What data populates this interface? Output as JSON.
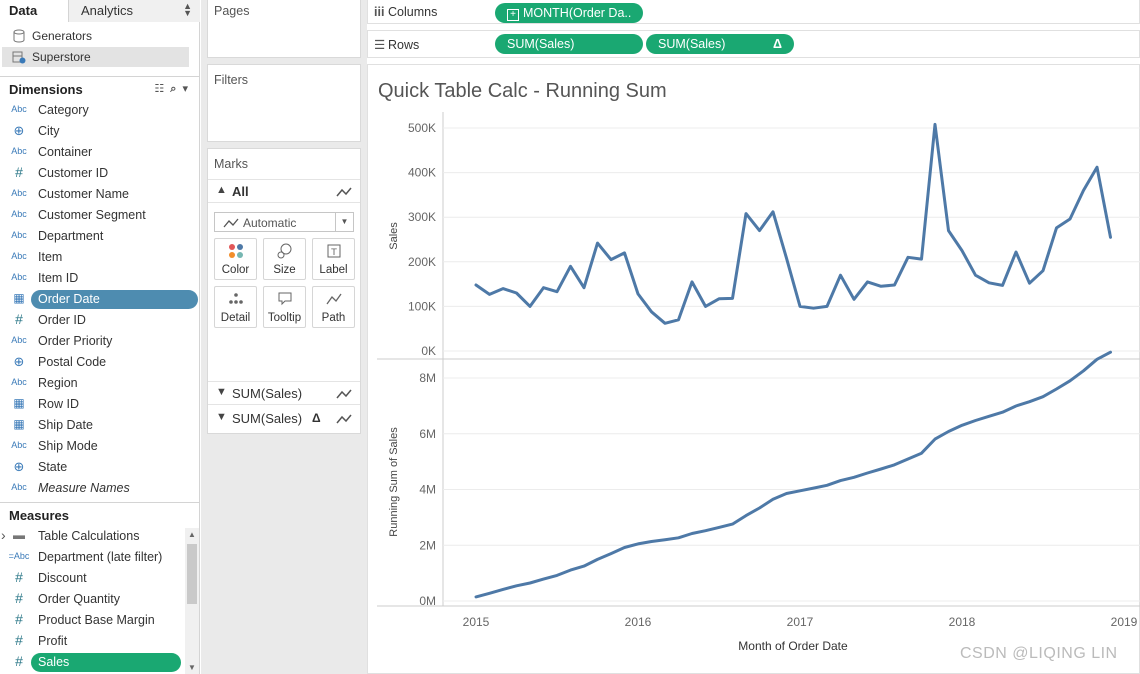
{
  "data_tabs": {
    "data": "Data",
    "analytics": "Analytics"
  },
  "data_sources": [
    "Generators",
    "Superstore"
  ],
  "dimensions": {
    "header": "Dimensions",
    "fields": [
      {
        "type": "Abc",
        "name": "Category"
      },
      {
        "type": "globe",
        "name": "City"
      },
      {
        "type": "Abc",
        "name": "Container"
      },
      {
        "type": "#",
        "name": "Customer ID"
      },
      {
        "type": "Abc",
        "name": "Customer Name"
      },
      {
        "type": "Abc",
        "name": "Customer Segment"
      },
      {
        "type": "Abc",
        "name": "Department"
      },
      {
        "type": "Abc",
        "name": "Item"
      },
      {
        "type": "Abc",
        "name": "Item ID"
      },
      {
        "type": "calendar",
        "name": "Order Date"
      },
      {
        "type": "#",
        "name": "Order ID"
      },
      {
        "type": "Abc",
        "name": "Order Priority"
      },
      {
        "type": "globe",
        "name": "Postal Code"
      },
      {
        "type": "Abc",
        "name": "Region"
      },
      {
        "type": "calendar",
        "name": "Row ID"
      },
      {
        "type": "calendar",
        "name": "Ship Date"
      },
      {
        "type": "Abc",
        "name": "Ship Mode"
      },
      {
        "type": "globe",
        "name": "State"
      },
      {
        "type": "Abc",
        "name": "Measure Names"
      }
    ]
  },
  "measures": {
    "header": "Measures",
    "fields": [
      {
        "type": "folder",
        "name": "Table Calculations"
      },
      {
        "type": "=Abc",
        "name": "Department (late filter)"
      },
      {
        "type": "#",
        "name": "Discount"
      },
      {
        "type": "#",
        "name": "Order Quantity"
      },
      {
        "type": "#",
        "name": "Product Base Margin"
      },
      {
        "type": "#",
        "name": "Profit"
      },
      {
        "type": "#",
        "name": "Sales"
      }
    ]
  },
  "cards": {
    "pages": "Pages",
    "filters": "Filters",
    "marks": "Marks"
  },
  "marks": {
    "all_label": "All",
    "mark_type": "Automatic",
    "buttons": [
      "Color",
      "Size",
      "Label",
      "Detail",
      "Tooltip",
      "Path"
    ],
    "layers": [
      "SUM(Sales)",
      "SUM(Sales)"
    ],
    "delta_symbol": "Δ"
  },
  "shelves": {
    "columns_label": "Columns",
    "columns_pill": "MONTH(Order Da..",
    "rows_label": "Rows",
    "rows_pills": [
      "SUM(Sales)",
      "SUM(Sales)"
    ]
  },
  "sheet_title": "Quick Table Calc - Running Sum",
  "chart_data": {
    "type": "line",
    "x_label": "Month of Order Date",
    "x_ticks": [
      "2015",
      "2016",
      "2017",
      "2018",
      "2019"
    ],
    "line_color": "#4e79a7",
    "grid": true,
    "panes": [
      {
        "ylabel": "Sales",
        "y_ticks": [
          "0K",
          "100K",
          "200K",
          "300K",
          "400K",
          "500K"
        ],
        "ylim": [
          0,
          500000
        ],
        "values": [
          148000,
          127000,
          140000,
          130000,
          100000,
          142000,
          133000,
          190000,
          142000,
          242000,
          205000,
          220000,
          128000,
          88000,
          62000,
          70000,
          155000,
          100000,
          117000,
          118000,
          308000,
          270000,
          312000,
          208000,
          100000,
          96000,
          100000,
          170000,
          116000,
          155000,
          145000,
          148000,
          210000,
          206000,
          508000,
          270000,
          225000,
          170000,
          153000,
          147000,
          222000,
          152000,
          180000,
          276000,
          296000,
          360000,
          412000,
          255000
        ]
      },
      {
        "ylabel": "Running Sum of Sales",
        "y_ticks": [
          "0M",
          "2M",
          "4M",
          "6M",
          "8M"
        ],
        "ylim": [
          0,
          9000000
        ],
        "values": [
          148000,
          275000,
          415000,
          545000,
          645000,
          787000,
          920000,
          1110000,
          1252000,
          1494000,
          1699000,
          1919000,
          2047000,
          2135000,
          2197000,
          2267000,
          2422000,
          2522000,
          2639000,
          2757000,
          3065000,
          3335000,
          3647000,
          3855000,
          3955000,
          4051000,
          4151000,
          4321000,
          4437000,
          4592000,
          4737000,
          4885000,
          5095000,
          5301000,
          5809000,
          6079000,
          6304000,
          6474000,
          6627000,
          6774000,
          6996000,
          7148000,
          7328000,
          7604000,
          7900000,
          8260000,
          8672000,
          8927000
        ]
      }
    ]
  },
  "watermark": "CSDN @LIQING LIN"
}
